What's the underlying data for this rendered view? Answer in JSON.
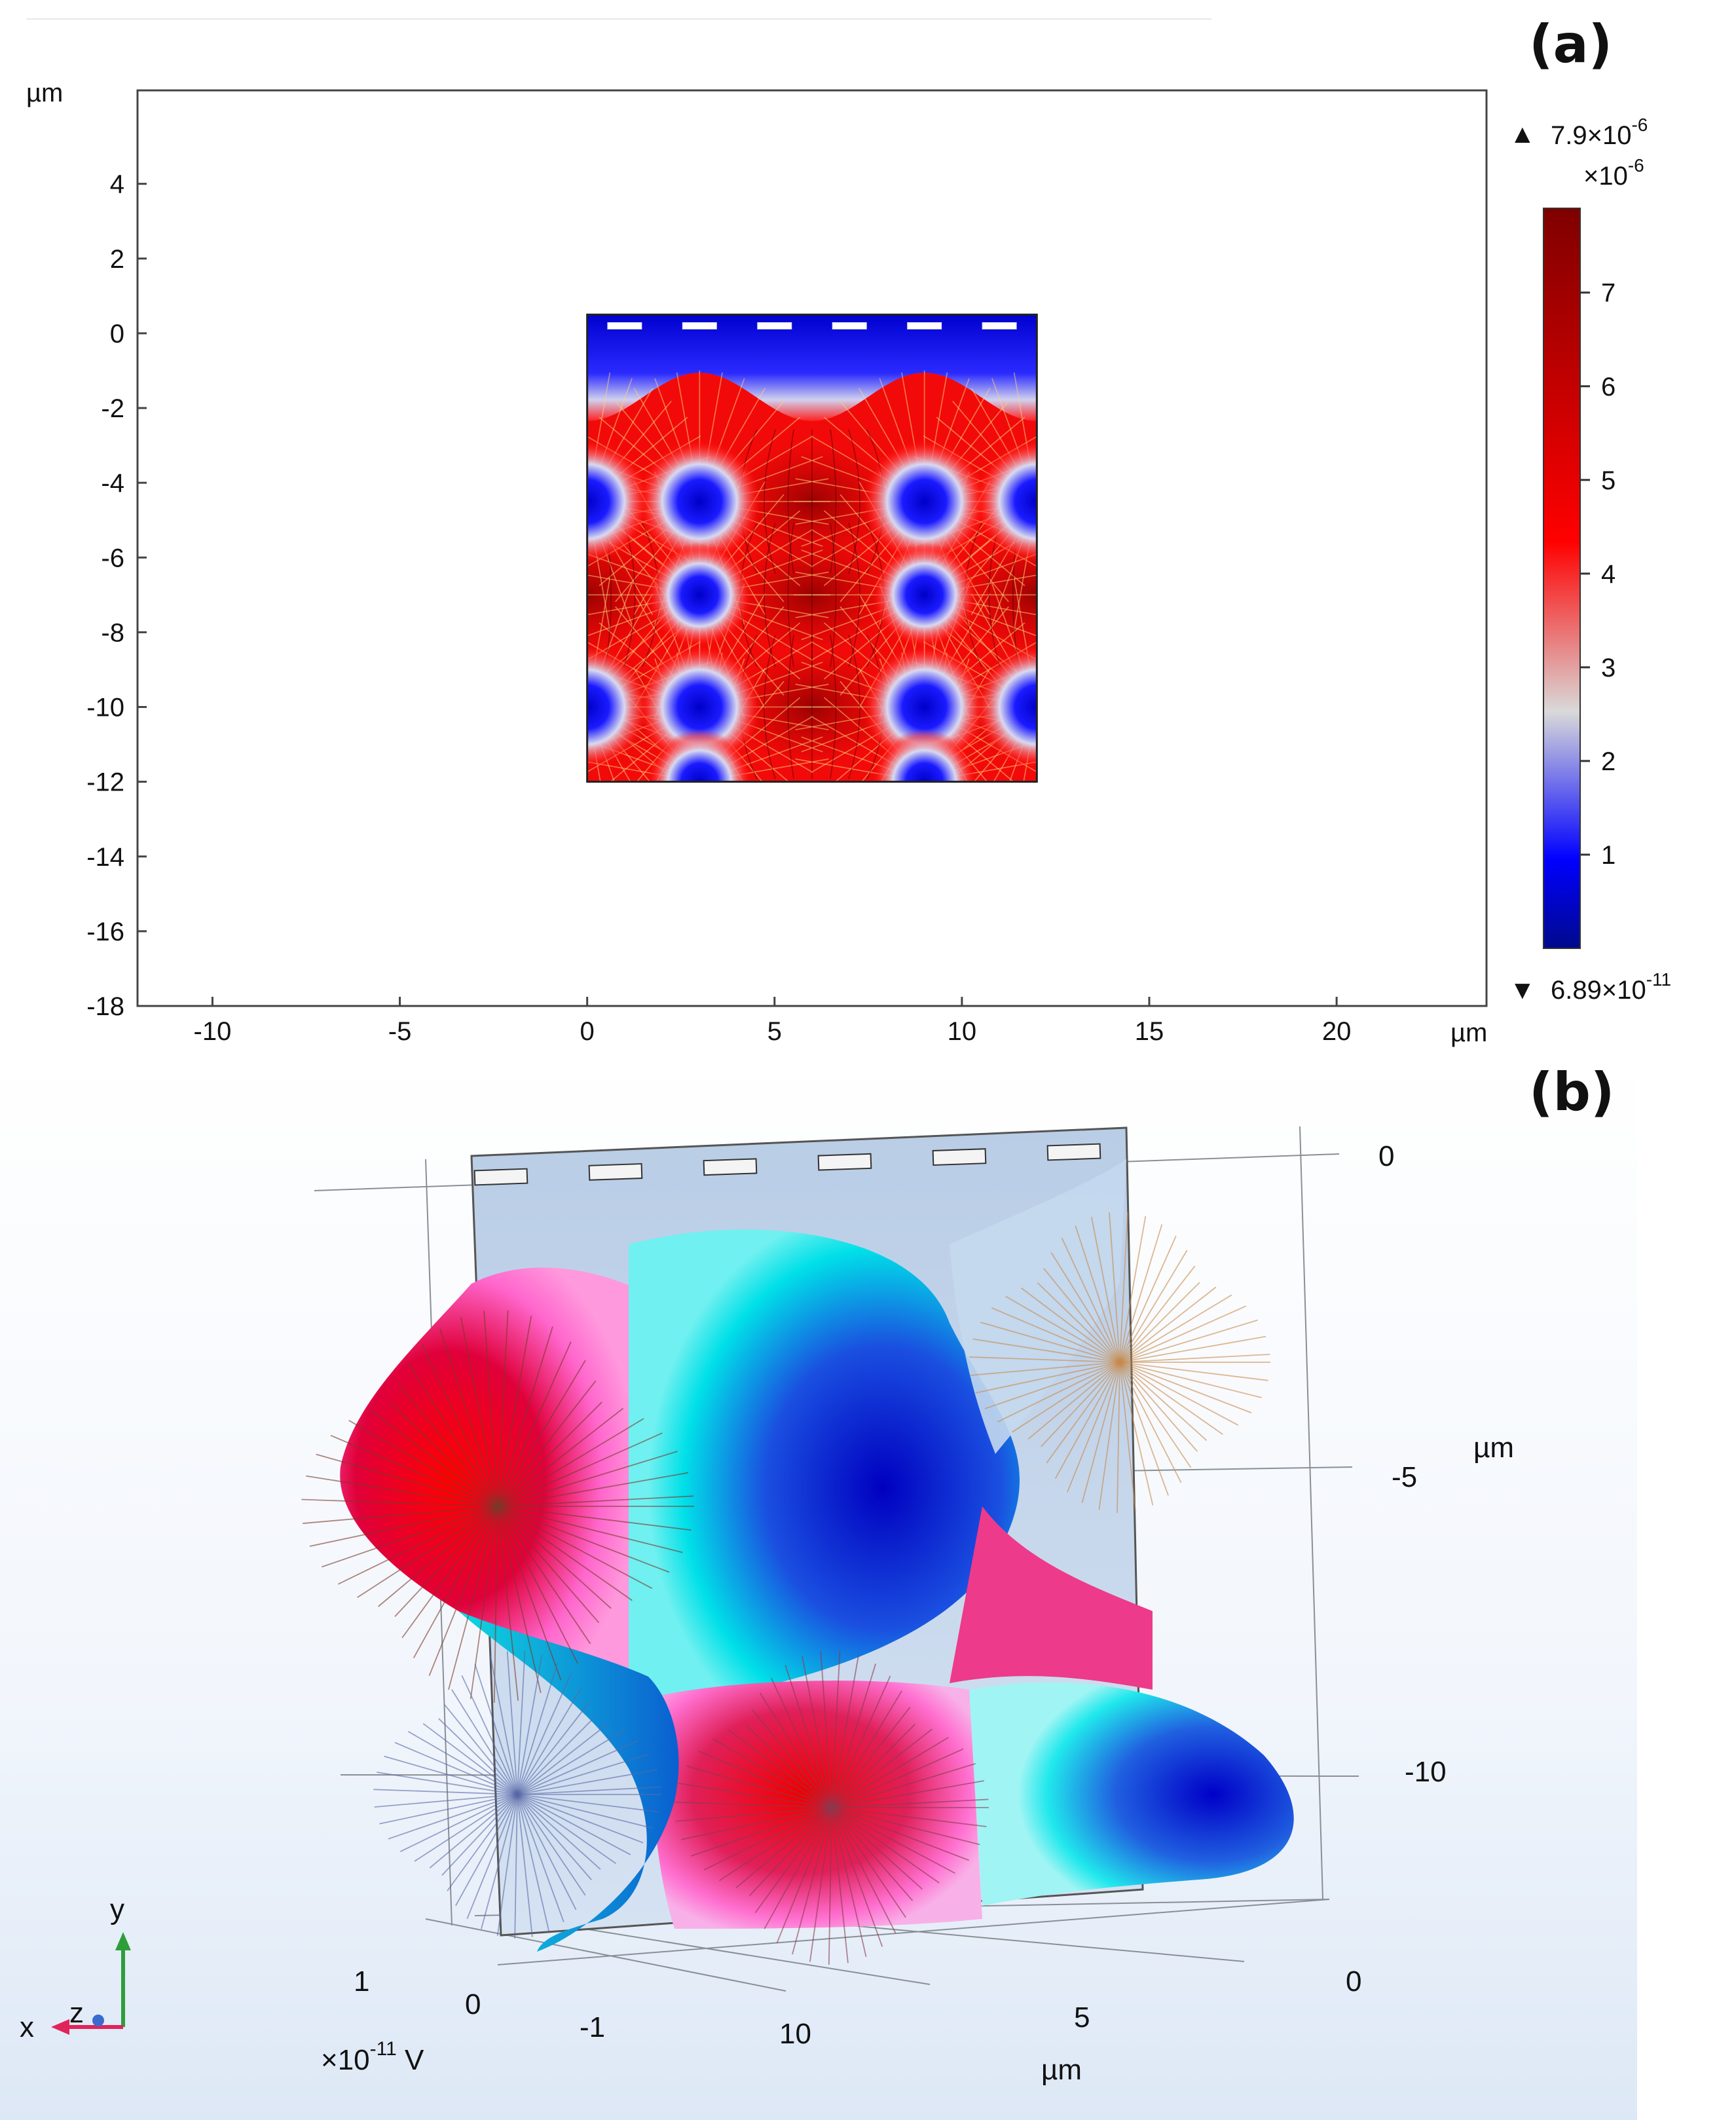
{
  "figure": {
    "panel_a": {
      "label": "(a)",
      "unit_label_y": "µm",
      "unit_label_x": "µm",
      "x_ticks": [
        "-10",
        "-5",
        "0",
        "5",
        "10",
        "15",
        "20"
      ],
      "y_ticks": [
        "4",
        "2",
        "0",
        "-2",
        "-4",
        "-6",
        "-8",
        "-10",
        "-12",
        "-14",
        "-16",
        "-18"
      ],
      "colorbar": {
        "max_label": "7.9×10",
        "max_exp": "-6",
        "scale_label": "×10",
        "scale_exp": "-6",
        "min_label": "6.89×10",
        "min_exp": "-11",
        "ticks": [
          "7",
          "6",
          "5",
          "4",
          "3",
          "2",
          "1"
        ],
        "colors": [
          "#000a8c",
          "#0000ff",
          "#d9d9d9",
          "#ff0000",
          "#7f0000"
        ]
      }
    },
    "panel_b": {
      "label": "(b)",
      "y_ticks": [
        "0",
        "-5",
        "-10"
      ],
      "y_unit": "µm",
      "x_ticks": [
        "0",
        "5",
        "10"
      ],
      "x_unit": "µm",
      "v_ticks": [
        "1",
        "0",
        "-1"
      ],
      "v_unit": "×10",
      "v_unit_exp": "-11",
      "v_unit_suffix": " V",
      "triad": {
        "y": "y",
        "x": "x",
        "z": "z"
      }
    }
  },
  "chart_data": [
    {
      "type": "heatmap",
      "title": "",
      "xlabel": "µm",
      "ylabel": "µm",
      "xlim": [
        -12,
        24
      ],
      "ylim": [
        -18,
        6.5
      ],
      "domain_x": [
        0,
        12
      ],
      "domain_y": [
        -12,
        0.5
      ],
      "color_range": [
        6.89e-11,
        7.9e-06
      ],
      "colormap": [
        "#000a8c",
        "#0000ff",
        "#d9d9d9",
        "#ff0000",
        "#7f0000"
      ],
      "low_field_centers": [
        {
          "x": 3,
          "y": -4.5
        },
        {
          "x": 9,
          "y": -4.5
        },
        {
          "x": 0,
          "y": -4.5
        },
        {
          "x": 12,
          "y": -4.5
        },
        {
          "x": 3,
          "y": -10
        },
        {
          "x": 9,
          "y": -10
        },
        {
          "x": 0,
          "y": -10
        },
        {
          "x": 12,
          "y": -10
        },
        {
          "x": 3,
          "y": -7
        },
        {
          "x": 9,
          "y": -7
        },
        {
          "x": 3,
          "y": -12
        },
        {
          "x": 9,
          "y": -12
        }
      ],
      "electrodes_x": [
        1,
        3,
        5,
        7,
        9,
        11
      ]
    },
    {
      "type": "surface",
      "title": "",
      "axes": {
        "x": [
          0,
          12
        ],
        "y": [
          -12,
          0
        ],
        "potential": [
          -1.2e-11,
          1.2e-11
        ]
      },
      "x_unit": "µm",
      "y_unit": "µm",
      "potential_unit": "×10^-11 V"
    }
  ]
}
